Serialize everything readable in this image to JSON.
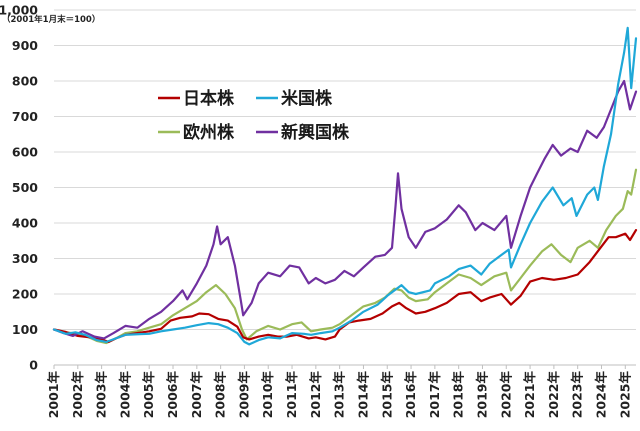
{
  "chart_data": {
    "type": "line",
    "unit_note": "（2001年1月末＝100）",
    "ylim": [
      0,
      1000
    ],
    "y_ticks": [
      "0",
      "100",
      "200",
      "300",
      "400",
      "500",
      "600",
      "700",
      "800",
      "900",
      "1,000"
    ],
    "x_ticks": [
      "2001年",
      "2002年",
      "2003年",
      "2004年",
      "2005年",
      "2006年",
      "2007年",
      "2008年",
      "2009年",
      "2010年",
      "2011年",
      "2012年",
      "2013年",
      "2014年",
      "2015年",
      "2016年",
      "2017年",
      "2018年",
      "2019年",
      "2020年",
      "2021年",
      "2022年",
      "2023年",
      "2024年",
      "2025年"
    ],
    "xlim": [
      2001.0,
      2025.45
    ],
    "grid": "horizontal",
    "legend": "top-left",
    "series": [
      {
        "name": "日本株",
        "color": "#b40000",
        "points": [
          [
            2001.0,
            100
          ],
          [
            2001.5,
            93
          ],
          [
            2002.0,
            82
          ],
          [
            2002.5,
            78
          ],
          [
            2003.0,
            72
          ],
          [
            2003.3,
            65
          ],
          [
            2003.6,
            75
          ],
          [
            2004.0,
            85
          ],
          [
            2004.5,
            90
          ],
          [
            2005.0,
            95
          ],
          [
            2005.5,
            102
          ],
          [
            2005.9,
            125
          ],
          [
            2006.3,
            133
          ],
          [
            2006.8,
            137
          ],
          [
            2007.1,
            145
          ],
          [
            2007.5,
            143
          ],
          [
            2007.9,
            130
          ],
          [
            2008.3,
            125
          ],
          [
            2008.7,
            108
          ],
          [
            2008.95,
            78
          ],
          [
            2009.2,
            72
          ],
          [
            2009.6,
            80
          ],
          [
            2010.0,
            85
          ],
          [
            2010.4,
            80
          ],
          [
            2010.8,
            80
          ],
          [
            2011.2,
            85
          ],
          [
            2011.7,
            75
          ],
          [
            2012.0,
            78
          ],
          [
            2012.4,
            72
          ],
          [
            2012.8,
            80
          ],
          [
            2013.0,
            100
          ],
          [
            2013.4,
            120
          ],
          [
            2013.8,
            125
          ],
          [
            2014.3,
            130
          ],
          [
            2014.8,
            145
          ],
          [
            2015.2,
            165
          ],
          [
            2015.5,
            175
          ],
          [
            2015.8,
            160
          ],
          [
            2016.2,
            145
          ],
          [
            2016.6,
            150
          ],
          [
            2017.0,
            160
          ],
          [
            2017.5,
            175
          ],
          [
            2018.0,
            200
          ],
          [
            2018.5,
            205
          ],
          [
            2018.95,
            180
          ],
          [
            2019.3,
            190
          ],
          [
            2019.8,
            200
          ],
          [
            2020.2,
            170
          ],
          [
            2020.6,
            195
          ],
          [
            2021.0,
            235
          ],
          [
            2021.5,
            245
          ],
          [
            2022.0,
            240
          ],
          [
            2022.5,
            245
          ],
          [
            2023.0,
            255
          ],
          [
            2023.5,
            290
          ],
          [
            2023.9,
            325
          ],
          [
            2024.3,
            360
          ],
          [
            2024.6,
            360
          ],
          [
            2025.0,
            370
          ],
          [
            2025.2,
            352
          ],
          [
            2025.45,
            380
          ]
        ]
      },
      {
        "name": "米国株",
        "color": "#1fa8d8",
        "points": [
          [
            2001.0,
            100
          ],
          [
            2001.5,
            88
          ],
          [
            2001.9,
            92
          ],
          [
            2002.3,
            85
          ],
          [
            2002.8,
            70
          ],
          [
            2003.2,
            65
          ],
          [
            2003.6,
            75
          ],
          [
            2004.0,
            85
          ],
          [
            2004.6,
            87
          ],
          [
            2005.0,
            88
          ],
          [
            2005.5,
            95
          ],
          [
            2006.0,
            100
          ],
          [
            2006.5,
            105
          ],
          [
            2007.0,
            112
          ],
          [
            2007.5,
            118
          ],
          [
            2007.9,
            115
          ],
          [
            2008.3,
            105
          ],
          [
            2008.7,
            90
          ],
          [
            2009.0,
            65
          ],
          [
            2009.2,
            58
          ],
          [
            2009.6,
            70
          ],
          [
            2010.0,
            78
          ],
          [
            2010.5,
            75
          ],
          [
            2011.0,
            90
          ],
          [
            2011.5,
            88
          ],
          [
            2011.8,
            85
          ],
          [
            2012.2,
            90
          ],
          [
            2012.7,
            95
          ],
          [
            2013.0,
            105
          ],
          [
            2013.5,
            125
          ],
          [
            2014.0,
            150
          ],
          [
            2014.6,
            170
          ],
          [
            2015.0,
            195
          ],
          [
            2015.6,
            225
          ],
          [
            2015.9,
            205
          ],
          [
            2016.2,
            200
          ],
          [
            2016.8,
            210
          ],
          [
            2017.0,
            230
          ],
          [
            2017.6,
            250
          ],
          [
            2018.0,
            270
          ],
          [
            2018.5,
            280
          ],
          [
            2018.95,
            255
          ],
          [
            2019.3,
            285
          ],
          [
            2019.8,
            310
          ],
          [
            2020.1,
            325
          ],
          [
            2020.2,
            275
          ],
          [
            2020.6,
            340
          ],
          [
            2021.0,
            400
          ],
          [
            2021.5,
            460
          ],
          [
            2021.95,
            500
          ],
          [
            2022.4,
            450
          ],
          [
            2022.75,
            470
          ],
          [
            2022.95,
            420
          ],
          [
            2023.4,
            480
          ],
          [
            2023.7,
            500
          ],
          [
            2023.85,
            465
          ],
          [
            2024.1,
            560
          ],
          [
            2024.4,
            650
          ],
          [
            2024.7,
            790
          ],
          [
            2024.95,
            880
          ],
          [
            2025.1,
            950
          ],
          [
            2025.25,
            780
          ],
          [
            2025.45,
            920
          ]
        ]
      },
      {
        "name": "欧州株",
        "color": "#9bbb59",
        "points": [
          [
            2001.0,
            100
          ],
          [
            2001.5,
            92
          ],
          [
            2002.0,
            88
          ],
          [
            2002.4,
            80
          ],
          [
            2002.8,
            68
          ],
          [
            2003.2,
            62
          ],
          [
            2003.6,
            75
          ],
          [
            2004.0,
            90
          ],
          [
            2004.5,
            95
          ],
          [
            2005.0,
            105
          ],
          [
            2005.5,
            115
          ],
          [
            2006.0,
            140
          ],
          [
            2006.5,
            160
          ],
          [
            2007.0,
            180
          ],
          [
            2007.4,
            205
          ],
          [
            2007.8,
            225
          ],
          [
            2008.2,
            200
          ],
          [
            2008.6,
            160
          ],
          [
            2008.9,
            100
          ],
          [
            2009.1,
            72
          ],
          [
            2009.5,
            95
          ],
          [
            2010.0,
            110
          ],
          [
            2010.5,
            100
          ],
          [
            2011.0,
            115
          ],
          [
            2011.4,
            120
          ],
          [
            2011.8,
            95
          ],
          [
            2012.2,
            100
          ],
          [
            2012.7,
            105
          ],
          [
            2013.0,
            115
          ],
          [
            2013.5,
            140
          ],
          [
            2014.0,
            165
          ],
          [
            2014.5,
            175
          ],
          [
            2014.9,
            190
          ],
          [
            2015.3,
            215
          ],
          [
            2015.6,
            210
          ],
          [
            2015.9,
            190
          ],
          [
            2016.2,
            180
          ],
          [
            2016.7,
            185
          ],
          [
            2017.0,
            205
          ],
          [
            2017.6,
            235
          ],
          [
            2018.0,
            255
          ],
          [
            2018.5,
            245
          ],
          [
            2018.95,
            225
          ],
          [
            2019.5,
            250
          ],
          [
            2020.0,
            260
          ],
          [
            2020.2,
            210
          ],
          [
            2020.6,
            245
          ],
          [
            2021.0,
            280
          ],
          [
            2021.5,
            320
          ],
          [
            2021.9,
            340
          ],
          [
            2022.3,
            310
          ],
          [
            2022.7,
            290
          ],
          [
            2023.0,
            330
          ],
          [
            2023.5,
            350
          ],
          [
            2023.85,
            330
          ],
          [
            2024.2,
            380
          ],
          [
            2024.6,
            420
          ],
          [
            2024.9,
            440
          ],
          [
            2025.1,
            490
          ],
          [
            2025.25,
            480
          ],
          [
            2025.45,
            550
          ]
        ]
      },
      {
        "name": "新興国株",
        "color": "#7030a0",
        "points": [
          [
            2001.0,
            100
          ],
          [
            2001.4,
            90
          ],
          [
            2001.8,
            82
          ],
          [
            2002.2,
            95
          ],
          [
            2002.7,
            80
          ],
          [
            2003.1,
            75
          ],
          [
            2003.5,
            90
          ],
          [
            2004.0,
            110
          ],
          [
            2004.5,
            105
          ],
          [
            2005.0,
            130
          ],
          [
            2005.5,
            150
          ],
          [
            2006.0,
            180
          ],
          [
            2006.4,
            210
          ],
          [
            2006.6,
            185
          ],
          [
            2007.0,
            230
          ],
          [
            2007.4,
            280
          ],
          [
            2007.7,
            340
          ],
          [
            2007.85,
            390
          ],
          [
            2008.0,
            340
          ],
          [
            2008.3,
            360
          ],
          [
            2008.6,
            280
          ],
          [
            2008.85,
            180
          ],
          [
            2008.95,
            140
          ],
          [
            2009.3,
            175
          ],
          [
            2009.6,
            230
          ],
          [
            2010.0,
            260
          ],
          [
            2010.5,
            250
          ],
          [
            2010.9,
            280
          ],
          [
            2011.3,
            275
          ],
          [
            2011.7,
            230
          ],
          [
            2012.0,
            245
          ],
          [
            2012.4,
            230
          ],
          [
            2012.8,
            240
          ],
          [
            2013.2,
            265
          ],
          [
            2013.6,
            250
          ],
          [
            2014.0,
            275
          ],
          [
            2014.5,
            305
          ],
          [
            2014.9,
            310
          ],
          [
            2015.2,
            330
          ],
          [
            2015.35,
            450
          ],
          [
            2015.45,
            540
          ],
          [
            2015.6,
            440
          ],
          [
            2015.9,
            360
          ],
          [
            2016.2,
            330
          ],
          [
            2016.6,
            375
          ],
          [
            2017.0,
            385
          ],
          [
            2017.5,
            410
          ],
          [
            2018.0,
            450
          ],
          [
            2018.3,
            430
          ],
          [
            2018.7,
            380
          ],
          [
            2019.0,
            400
          ],
          [
            2019.5,
            380
          ],
          [
            2020.0,
            420
          ],
          [
            2020.2,
            330
          ],
          [
            2020.6,
            420
          ],
          [
            2021.0,
            500
          ],
          [
            2021.3,
            540
          ],
          [
            2021.6,
            580
          ],
          [
            2021.95,
            620
          ],
          [
            2022.3,
            590
          ],
          [
            2022.7,
            610
          ],
          [
            2023.0,
            600
          ],
          [
            2023.4,
            660
          ],
          [
            2023.8,
            640
          ],
          [
            2024.1,
            670
          ],
          [
            2024.4,
            720
          ],
          [
            2024.7,
            770
          ],
          [
            2024.95,
            800
          ],
          [
            2025.2,
            720
          ],
          [
            2025.45,
            770
          ]
        ]
      }
    ]
  }
}
